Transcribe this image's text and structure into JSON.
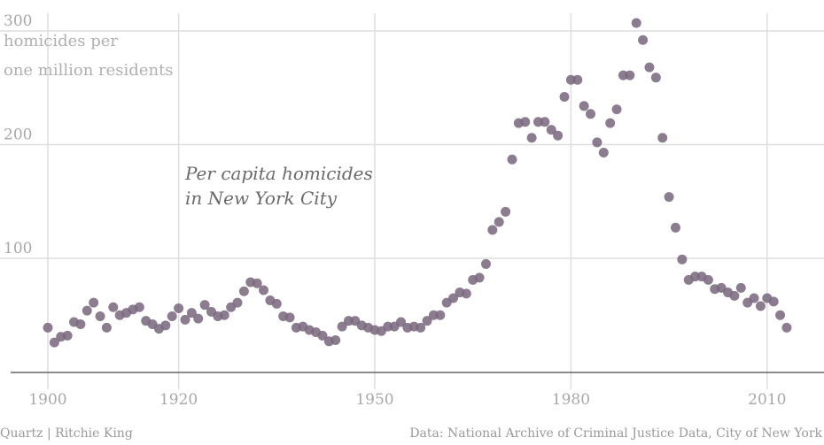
{
  "chart_data": {
    "type": "scatter",
    "title": "Per capita homicides in New York City",
    "title_lines": [
      "Per capita homicides",
      "in New York City"
    ],
    "ylabel_lines": [
      "homicides per",
      "one million residents"
    ],
    "xlabel": "",
    "xlim": [
      1900,
      2013
    ],
    "ylim": [
      0,
      300
    ],
    "x_ticks": [
      1900,
      1920,
      1950,
      1980,
      2010
    ],
    "y_ticks": [
      100,
      200,
      300
    ],
    "grid": true,
    "point_color": "#7b6a80",
    "x": [
      1900,
      1901,
      1902,
      1903,
      1904,
      1905,
      1906,
      1907,
      1908,
      1909,
      1910,
      1911,
      1912,
      1913,
      1914,
      1915,
      1916,
      1917,
      1918,
      1919,
      1920,
      1921,
      1922,
      1923,
      1924,
      1925,
      1926,
      1927,
      1928,
      1929,
      1930,
      1931,
      1932,
      1933,
      1934,
      1935,
      1936,
      1937,
      1938,
      1939,
      1940,
      1941,
      1942,
      1943,
      1944,
      1945,
      1946,
      1947,
      1948,
      1949,
      1950,
      1951,
      1952,
      1953,
      1954,
      1955,
      1956,
      1957,
      1958,
      1959,
      1960,
      1961,
      1962,
      1963,
      1964,
      1965,
      1966,
      1967,
      1968,
      1969,
      1970,
      1971,
      1972,
      1973,
      1974,
      1975,
      1976,
      1977,
      1978,
      1979,
      1980,
      1981,
      1982,
      1983,
      1984,
      1985,
      1986,
      1987,
      1988,
      1989,
      1990,
      1991,
      1992,
      1993,
      1994,
      1995,
      1996,
      1997,
      1998,
      1999,
      2000,
      2001,
      2002,
      2003,
      2004,
      2005,
      2006,
      2007,
      2008,
      2009,
      2010,
      2011,
      2012,
      2013
    ],
    "y": [
      39,
      26,
      31,
      32,
      44,
      42,
      54,
      61,
      49,
      39,
      57,
      50,
      52,
      55,
      57,
      45,
      42,
      38,
      41,
      49,
      56,
      46,
      52,
      47,
      59,
      53,
      49,
      50,
      57,
      61,
      71,
      79,
      78,
      72,
      63,
      60,
      49,
      48,
      39,
      40,
      37,
      35,
      32,
      27,
      28,
      40,
      45,
      45,
      41,
      39,
      37,
      36,
      40,
      40,
      44,
      39,
      40,
      39,
      45,
      50,
      50,
      61,
      65,
      70,
      69,
      81,
      83,
      95,
      125,
      132,
      141,
      187,
      219,
      220,
      206,
      220,
      220,
      213,
      208,
      242,
      257,
      257,
      234,
      227,
      202,
      193,
      219,
      231,
      261,
      261,
      307,
      292,
      268,
      259,
      206,
      154,
      127,
      99,
      81,
      84,
      84,
      81,
      73,
      74,
      70,
      67,
      74,
      61,
      65,
      58,
      65,
      62,
      50,
      39
    ],
    "footer_left": "Quartz | Ritchie King",
    "footer_right": "Data: National Archive of Criminal Justice Data, City of New York"
  }
}
